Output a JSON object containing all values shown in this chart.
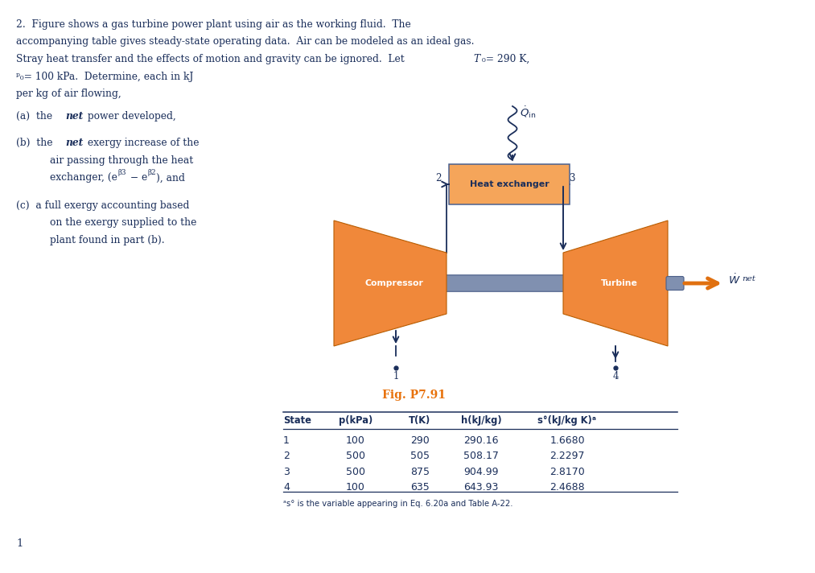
{
  "bg_color": "#ffffff",
  "text_color_dark": "#1a2e5a",
  "text_color_orange": "#e8720c",
  "fig_width": 10.13,
  "fig_height": 7.12,
  "compressor_color": "#f0883a",
  "turbine_color": "#f0883a",
  "heat_exchanger_color": "#f5a55a",
  "shaft_color": "#8090b0",
  "arrow_color": "#1a2e5a",
  "wnet_arrow_color": "#e07010",
  "heat_exchanger_border": "#4a6090",
  "fig_caption": "Fig. P7.91",
  "table_headers": [
    "State",
    "p(kPa)",
    "T(K)",
    "h(kJ/kg)",
    "s°(kJ/kg K)ᵃ"
  ],
  "table_data": [
    [
      "1",
      "100",
      "290",
      "290.16",
      "1.6680"
    ],
    [
      "2",
      "500",
      "505",
      "508.17",
      "2.2297"
    ],
    [
      "3",
      "500",
      "875",
      "904.99",
      "2.8170"
    ],
    [
      "4",
      "100",
      "635",
      "643.93",
      "2.4688"
    ]
  ],
  "table_footnote": "ᵃs° is the variable appearing in Eq. 6.20a and Table A-22.",
  "page_number": "1"
}
